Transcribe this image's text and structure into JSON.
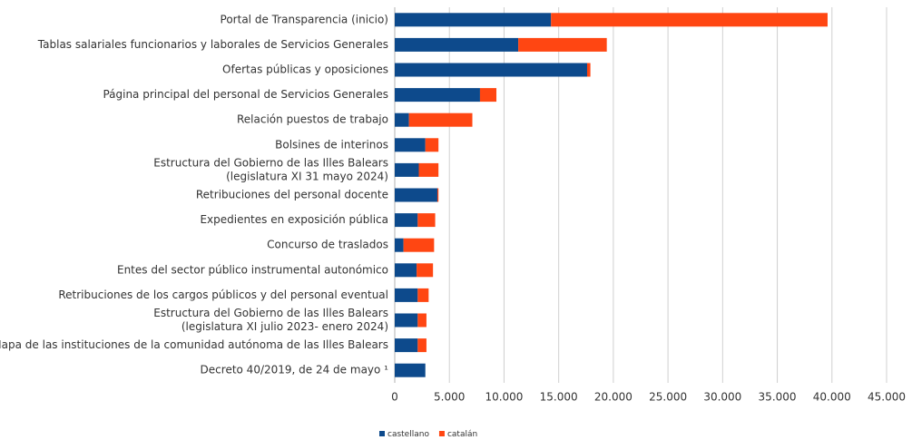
{
  "chart_data": {
    "type": "stacked-barh",
    "categories": [
      "Portal de Transparencia (inicio)",
      "Tablas salariales funcionarios y laborales de Servicios Generales",
      "Ofertas públicas y oposiciones",
      "Página principal del personal de Servicios Generales",
      "Relación puestos de trabajo",
      "Bolsines de interinos",
      [
        "Estructura del Gobierno de las Illes Balears",
        "(legislatura XI 31 mayo 2024)"
      ],
      "Retribuciones del personal docente",
      "Expedientes en exposición pública",
      "Concurso de traslados",
      "Entes del sector público instrumental autonómico",
      "Retribuciones de los cargos públicos y del personal eventual",
      [
        "Estructura del Gobierno de las Illes Balears",
        "(legislatura XI julio 2023- enero 2024)"
      ],
      "Mapa de las instituciones de la comunidad autónoma de las Illes Balears",
      "Decreto 40/2019, de 24 de mayo ¹"
    ],
    "series": [
      {
        "name": "castellano",
        "color": "#0d4a8c",
        "values": [
          14300,
          11300,
          17600,
          7800,
          1300,
          2800,
          2200,
          3900,
          2100,
          800,
          2000,
          2100,
          2100,
          2100,
          2800
        ]
      },
      {
        "name": "catalán",
        "color": "#ff4612",
        "values": [
          25300,
          8100,
          300,
          1500,
          5800,
          1200,
          1800,
          100,
          1600,
          2800,
          1500,
          1000,
          800,
          800,
          0
        ]
      }
    ],
    "xlim": [
      0,
      45000
    ],
    "xticks": [
      0,
      {
        "value": 5000,
        "label": "5.000"
      },
      {
        "value": 10000,
        "label": "10.000"
      },
      {
        "value": 15000,
        "label": "15.000"
      },
      {
        "value": 20000,
        "label": "20.000"
      },
      {
        "value": 25000,
        "label": "25.000"
      },
      {
        "value": 30000,
        "label": "30.000"
      },
      {
        "value": 35000,
        "label": "35.000"
      },
      {
        "value": 40000,
        "label": "40.000"
      },
      {
        "value": 45000,
        "label": "45.000"
      }
    ],
    "grid": true,
    "legend": "bottom"
  }
}
